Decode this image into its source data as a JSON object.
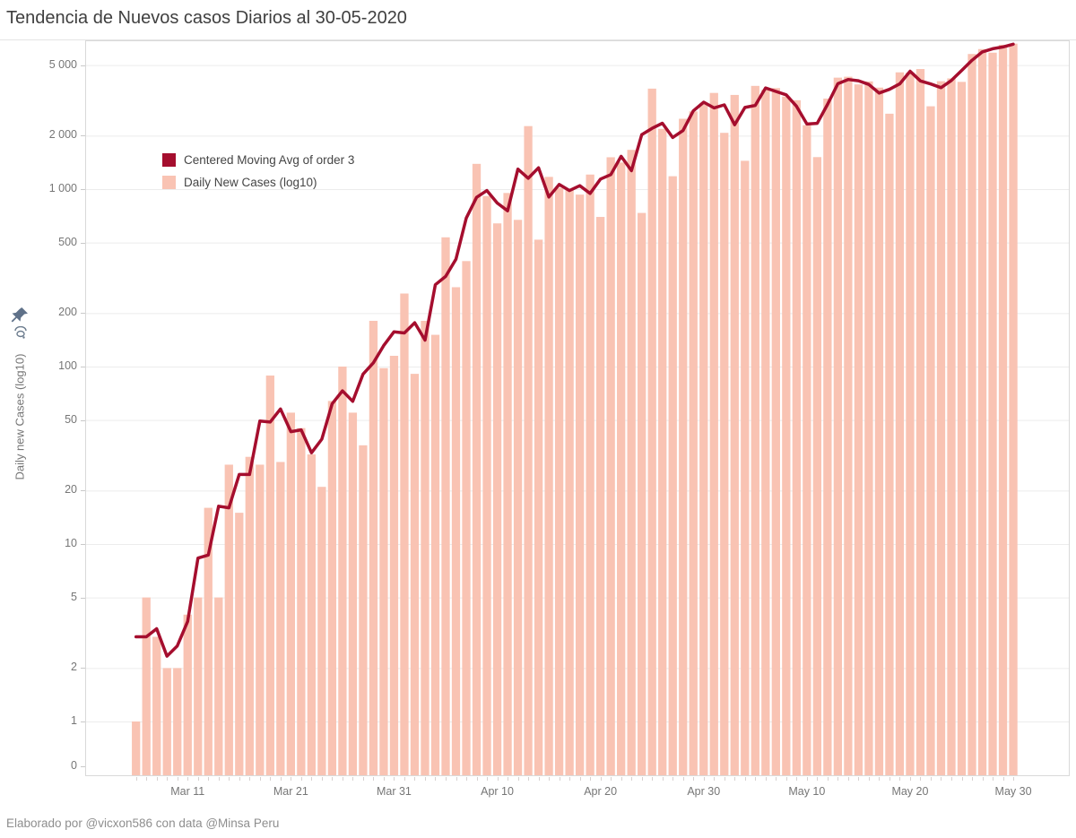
{
  "title": "Tendencia de Nuevos casos Diarios al 30-05-2020",
  "footer": "Elaborado por @vicxon586 con data @Minsa Peru",
  "y_axis": {
    "label": "Daily new Cases (log10)",
    "scale": "log10",
    "ticks": [
      0,
      1,
      2,
      5,
      10,
      20,
      50,
      100,
      200,
      500,
      1000,
      2000,
      5000
    ]
  },
  "x_axis": {
    "tick_labels": [
      "Mar 11",
      "Mar 21",
      "Mar 31",
      "Apr 10",
      "Apr 20",
      "Apr 30",
      "May 10",
      "May 20",
      "May 30"
    ],
    "tick_interval_days": 10
  },
  "legend": {
    "items": [
      {
        "label": "Centered Moving Avg of order 3",
        "color": "#a50e2e",
        "type": "line"
      },
      {
        "label": "Daily New Cases (log10)",
        "color": "#f9c3b3",
        "type": "bar"
      }
    ]
  },
  "icons": {
    "pin": "pin-icon",
    "pin_color": "#5f7189"
  },
  "colors": {
    "bar": "#f9c3b3",
    "line": "#a50e2e",
    "gridline": "#ececec",
    "border": "#d9d9d9",
    "tick": "#c9c9c9"
  },
  "chart_data": {
    "type": "bar",
    "title": "Tendencia de Nuevos casos Diarios al 30-05-2020",
    "x_range": {
      "start": "2020-03-06",
      "end": "2020-05-30",
      "step": "1 day"
    },
    "y_scale": "log10",
    "ylim": [
      0,
      6700
    ],
    "y_ticks": [
      0,
      1,
      2,
      5,
      10,
      20,
      50,
      100,
      200,
      500,
      1000,
      2000,
      5000
    ],
    "grid": "horizontal",
    "legend_position": "inside top-left",
    "series": [
      {
        "name": "Daily New Cases (log10)",
        "type": "bar",
        "values": [
          1,
          5,
          3,
          2,
          2,
          4,
          5,
          16,
          5,
          28,
          15,
          31,
          28,
          89,
          29,
          55,
          45,
          32,
          21,
          64,
          100,
          55,
          36,
          181,
          98,
          115,
          258,
          91,
          181,
          151,
          535,
          280,
          393,
          1388,
          914,
          641,
          951,
          671,
          2265,
          519,
          1172,
          1016,
          998,
          931,
          1208,
          697,
          1512,
          1413,
          1664,
          734,
          3683,
          2186,
          1182,
          2491,
          2741,
          3045,
          3483,
          2075,
          3394,
          1444,
          3817,
          3628,
          3709,
          3321,
          3168,
          2292,
          1515,
          3237,
          4247,
          4298,
          3891,
          4046,
          3732,
          2660,
          4550,
          4537,
          4749,
          2929,
          4056,
          4205,
          4020,
          5772,
          6154,
          5874,
          6506,
          6603
        ]
      },
      {
        "name": "Centered Moving Avg of order 3",
        "type": "line",
        "derived_from": "Daily New Cases (log10)",
        "derivation": "centered moving average, window 3, truncated at edges"
      }
    ]
  }
}
